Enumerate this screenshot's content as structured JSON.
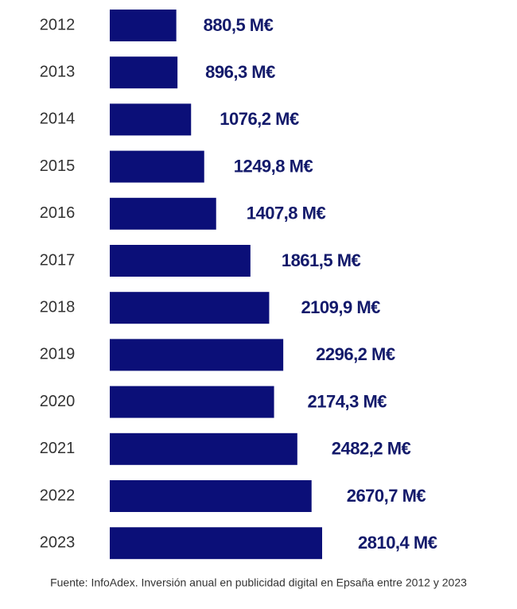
{
  "chart_data": {
    "type": "bar",
    "orientation": "horizontal",
    "categories": [
      "2012",
      "2013",
      "2014",
      "2015",
      "2016",
      "2017",
      "2018",
      "2019",
      "2020",
      "2021",
      "2022",
      "2023"
    ],
    "values": [
      880.5,
      896.3,
      1076.2,
      1249.8,
      1407.8,
      1861.5,
      2109.9,
      2296.2,
      2174.3,
      2482.2,
      2670.7,
      2810.4
    ],
    "value_labels": [
      "880,5 M€",
      "896,3 M€",
      "1076,2 M€",
      "1249,8 M€",
      "1407,8 M€",
      "1861,5 M€",
      "2109,9 M€",
      "2296,2 M€",
      "2174,3 M€",
      "2482,2 M€",
      "2670,7 M€",
      "2810,4 M€"
    ],
    "color": "#0b0f78",
    "source": "Fuente: InfoAdex. Inversión anual en publicidad digital en Epsaña entre 2012 y 2023"
  }
}
